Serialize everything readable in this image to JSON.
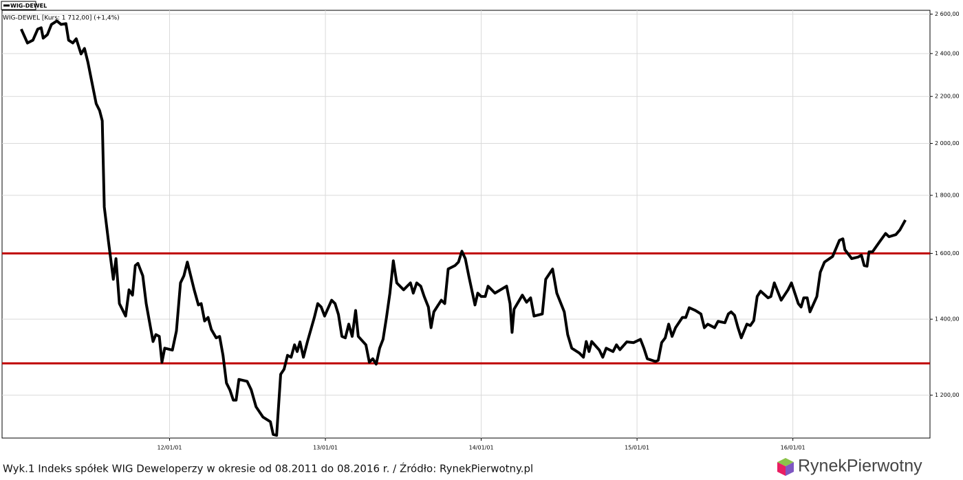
{
  "chart_data": {
    "type": "line",
    "subtitle": "WIG-DEWEL [Kurs: 1 712,00] (+1,4%)",
    "caption": "Wyk.1 Indeks spółek WIG Deweloperzy w okresie od 08.2011 do 08.2016 r. / Źródło: RynekPierwotny.pl",
    "legend_position": "top-left",
    "grid": true,
    "log_scale_y": true,
    "xlim": [
      2010.925,
      2016.88
    ],
    "xticks": [
      {
        "value": 2012,
        "label": "12/01/01"
      },
      {
        "value": 2013,
        "label": "13/01/01"
      },
      {
        "value": 2014,
        "label": "14/01/01"
      },
      {
        "value": 2015,
        "label": "15/01/01"
      },
      {
        "value": 2016,
        "label": "16/01/01"
      }
    ],
    "ylim": [
      1100,
      2620
    ],
    "yticks": [
      {
        "value": 1200,
        "label": "1 200,00"
      },
      {
        "value": 1400,
        "label": "1 400,00"
      },
      {
        "value": 1600,
        "label": "1 600,00"
      },
      {
        "value": 1800,
        "label": "1 800,00"
      },
      {
        "value": 2000,
        "label": "2 000,00"
      },
      {
        "value": 2200,
        "label": "2 200,00"
      },
      {
        "value": 2400,
        "label": "2 400,00"
      },
      {
        "value": 2600,
        "label": "2 600,00"
      }
    ],
    "reference_lines": [
      {
        "value": 1600,
        "color": "#c00000"
      },
      {
        "value": 1280,
        "color": "#c00000"
      }
    ],
    "x": [
      2011.048,
      2011.088,
      2011.123,
      2011.154,
      2011.176,
      2011.189,
      2011.216,
      2011.242,
      2011.277,
      2011.304,
      2011.335,
      2011.352,
      2011.379,
      2011.401,
      2011.432,
      2011.454,
      2011.476,
      2011.498,
      2011.529,
      2011.551,
      2011.568,
      2011.581,
      2011.608,
      2011.639,
      2011.656,
      2011.678,
      2011.718,
      2011.74,
      2011.762,
      2011.78,
      2011.797,
      2011.828,
      2011.85,
      2011.894,
      2011.912,
      2011.934,
      2011.951,
      2011.969,
      2012.018,
      2012.044,
      2012.07,
      2012.092,
      2012.114,
      2012.158,
      2012.185,
      2012.203,
      2012.225,
      2012.247,
      2012.268,
      2012.299,
      2012.321,
      2012.343,
      2012.365,
      2012.387,
      2012.409,
      2012.427,
      2012.445,
      2012.498,
      2012.524,
      2012.555,
      2012.599,
      2012.647,
      2012.665,
      2012.687,
      2012.713,
      2012.735,
      2012.757,
      2012.78,
      2012.802,
      2012.819,
      2012.837,
      2012.859,
      2012.885,
      2012.929,
      2012.951,
      2012.973,
      2012.995,
      2013.04,
      2013.062,
      2013.084,
      2013.106,
      2013.128,
      2013.15,
      2013.172,
      2013.194,
      2013.211,
      2013.26,
      2013.282,
      2013.304,
      2013.326,
      2013.348,
      2013.37,
      2013.392,
      2013.414,
      2013.436,
      2013.458,
      2013.502,
      2013.546,
      2013.564,
      2013.586,
      2013.612,
      2013.634,
      2013.661,
      2013.678,
      2013.696,
      2013.744,
      2013.766,
      2013.788,
      2013.832,
      2013.854,
      2013.876,
      2013.898,
      2013.92,
      2013.96,
      2013.978,
      2014.0,
      2014.026,
      2014.044,
      2014.088,
      2014.163,
      2014.185,
      2014.198,
      2014.211,
      2014.264,
      2014.291,
      2014.317,
      2014.339,
      2014.392,
      2014.414,
      2014.458,
      2014.485,
      2014.533,
      2014.555,
      2014.581,
      2014.63,
      2014.656,
      2014.674,
      2014.692,
      2014.709,
      2014.758,
      2014.78,
      2014.802,
      2014.846,
      2014.868,
      2014.89,
      2014.934,
      2014.978,
      2015.022,
      2015.044,
      2015.066,
      2015.118,
      2015.136,
      2015.158,
      2015.181,
      2015.203,
      2015.225,
      2015.247,
      2015.291,
      2015.313,
      2015.335,
      2015.374,
      2015.41,
      2015.432,
      2015.454,
      2015.498,
      2015.52,
      2015.564,
      2015.586,
      2015.604,
      2015.626,
      2015.648,
      2015.669,
      2015.705,
      2015.727,
      2015.749,
      2015.771,
      2015.793,
      2015.841,
      2015.859,
      2015.881,
      2015.925,
      2015.969,
      2015.991,
      2016.035,
      2016.053,
      2016.07,
      2016.092,
      2016.11,
      2016.154,
      2016.176,
      2016.203,
      2016.255,
      2016.277,
      2016.299,
      2016.321,
      2016.334,
      2016.378,
      2016.418,
      2016.44,
      2016.458,
      2016.476,
      2016.489,
      2016.511,
      2016.551,
      2016.595,
      2016.617,
      2016.661,
      2016.687,
      2016.722
    ],
    "series": [
      {
        "name": "WIG-DEWEL",
        "color": "#000000",
        "values": [
          2522,
          2452,
          2466,
          2522,
          2529,
          2476,
          2494,
          2546,
          2564,
          2546,
          2550,
          2466,
          2452,
          2473,
          2398,
          2425,
          2358,
          2277,
          2168,
          2138,
          2094,
          1758,
          1639,
          1518,
          1583,
          1445,
          1409,
          1486,
          1470,
          1561,
          1568,
          1529,
          1445,
          1338,
          1357,
          1352,
          1283,
          1320,
          1315,
          1367,
          1507,
          1529,
          1572,
          1486,
          1441,
          1445,
          1395,
          1405,
          1371,
          1348,
          1352,
          1301,
          1230,
          1213,
          1188,
          1188,
          1239,
          1234,
          1213,
          1172,
          1148,
          1137,
          1108,
          1106,
          1252,
          1265,
          1301,
          1296,
          1329,
          1311,
          1337,
          1296,
          1338,
          1405,
          1445,
          1435,
          1409,
          1455,
          1445,
          1413,
          1352,
          1348,
          1386,
          1352,
          1425,
          1352,
          1329,
          1283,
          1292,
          1278,
          1320,
          1344,
          1405,
          1476,
          1576,
          1507,
          1486,
          1507,
          1476,
          1507,
          1497,
          1466,
          1435,
          1376,
          1421,
          1455,
          1445,
          1550,
          1561,
          1572,
          1607,
          1583,
          1529,
          1441,
          1476,
          1466,
          1466,
          1497,
          1476,
          1497,
          1445,
          1363,
          1429,
          1470,
          1449,
          1462,
          1409,
          1415,
          1518,
          1550,
          1476,
          1421,
          1357,
          1320,
          1307,
          1296,
          1338,
          1311,
          1338,
          1315,
          1296,
          1320,
          1311,
          1329,
          1316,
          1337,
          1335,
          1344,
          1320,
          1292,
          1285,
          1288,
          1335,
          1348,
          1386,
          1352,
          1376,
          1405,
          1405,
          1433,
          1425,
          1415,
          1376,
          1386,
          1376,
          1394,
          1390,
          1415,
          1421,
          1411,
          1376,
          1348,
          1386,
          1382,
          1396,
          1466,
          1482,
          1462,
          1466,
          1507,
          1455,
          1486,
          1507,
          1445,
          1435,
          1462,
          1462,
          1421,
          1466,
          1540,
          1572,
          1590,
          1616,
          1643,
          1648,
          1612,
          1583,
          1588,
          1594,
          1561,
          1559,
          1605,
          1605,
          1634,
          1666,
          1655,
          1662,
          1678,
          1712
        ]
      }
    ]
  },
  "logo": {
    "text": "RynekPierwotny"
  }
}
